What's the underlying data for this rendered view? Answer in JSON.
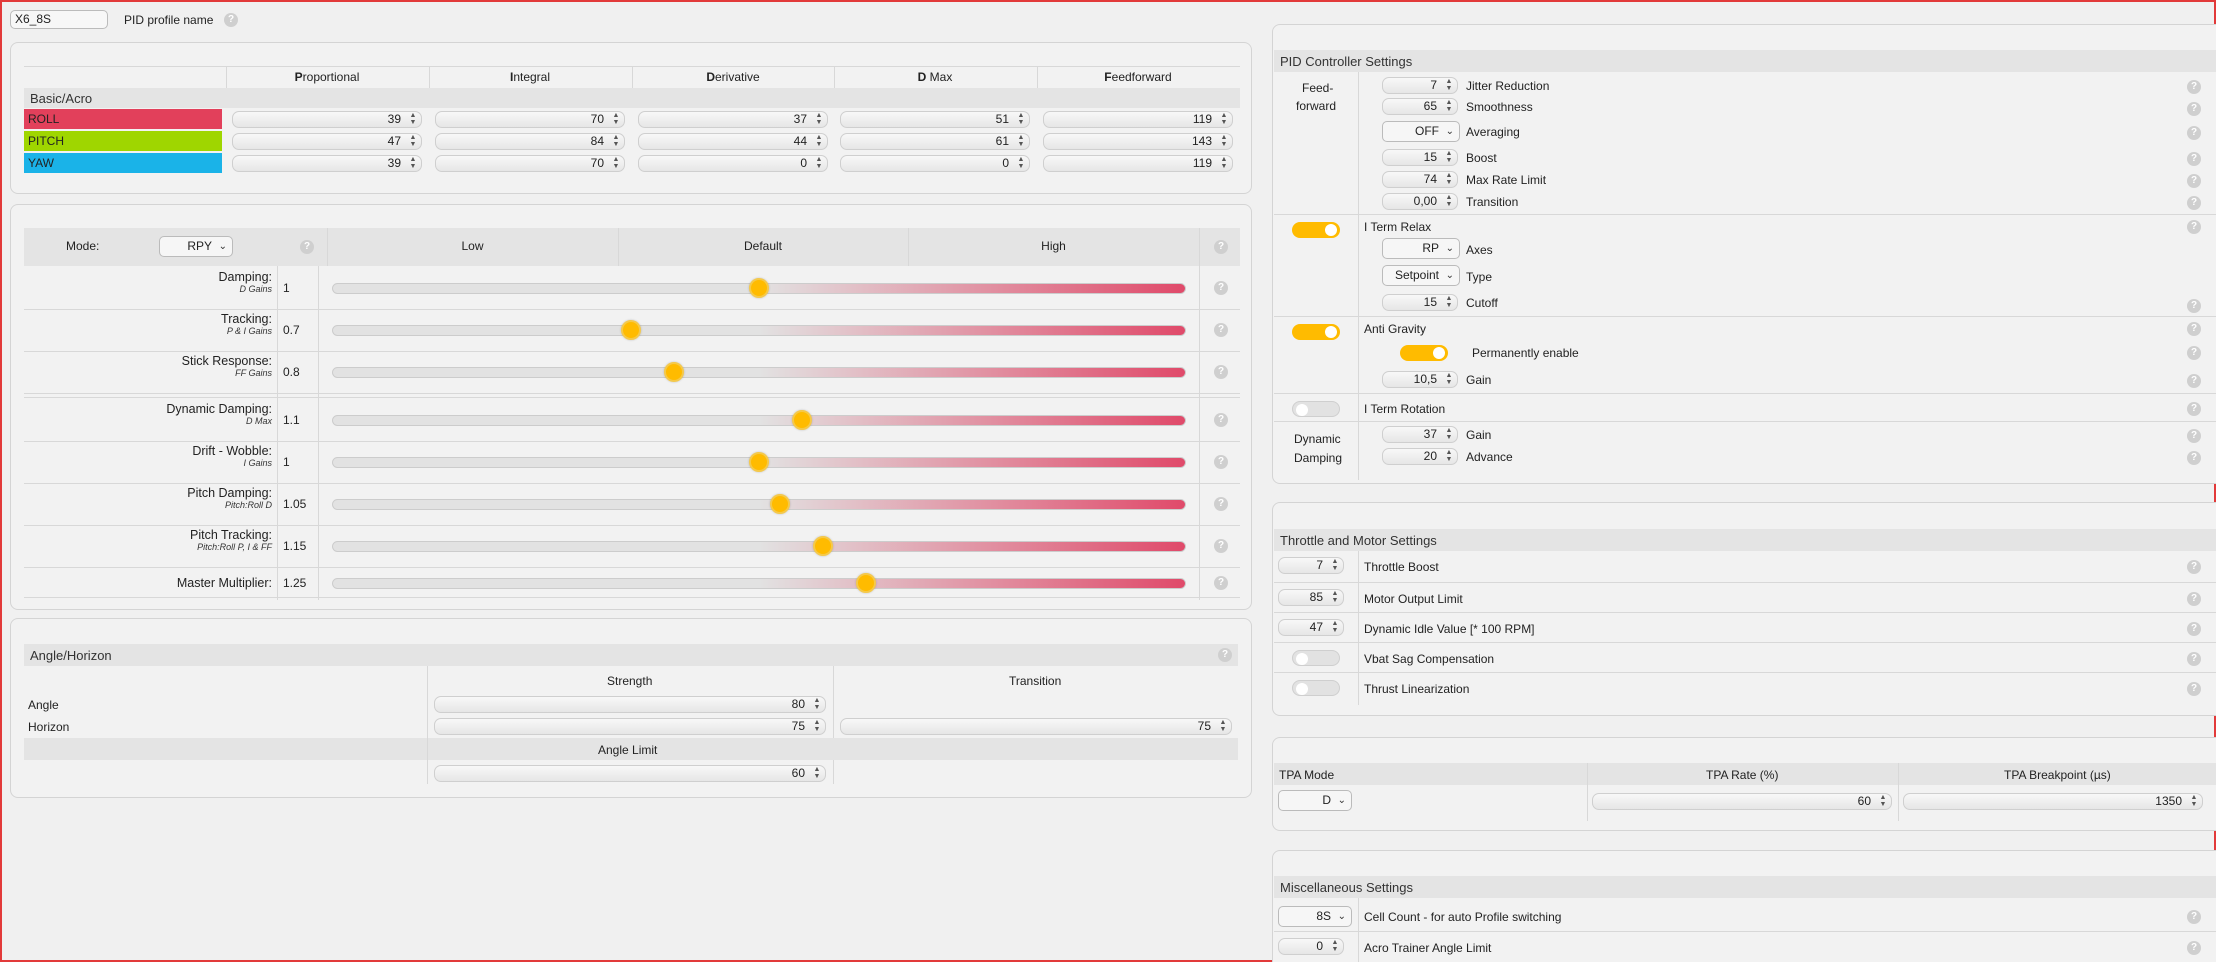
{
  "profile": {
    "name": "X6_8S",
    "label": "PID profile name"
  },
  "pid": {
    "columns": [
      {
        "first": "P",
        "rest": "roportional"
      },
      {
        "first": "I",
        "rest": "ntegral"
      },
      {
        "first": "D",
        "rest": "erivative"
      },
      {
        "first": "D",
        "rest": " Max"
      },
      {
        "first": "F",
        "rest": "eedforward"
      }
    ],
    "section": "Basic/Acro",
    "rows": [
      {
        "name": "ROLL",
        "color": "#e2405b",
        "values": [
          "39",
          "70",
          "37",
          "51",
          "119"
        ]
      },
      {
        "name": "PITCH",
        "color": "#9fd600",
        "values": [
          "47",
          "84",
          "44",
          "61",
          "143"
        ]
      },
      {
        "name": "YAW",
        "color": "#1ab3e8",
        "values": [
          "39",
          "70",
          "0",
          "0",
          "119"
        ]
      }
    ]
  },
  "sliders": {
    "mode_label": "Mode:",
    "mode_value": "RPY",
    "headers": [
      "Low",
      "Default",
      "High"
    ],
    "rows": [
      {
        "label": "Damping:",
        "sub": "D Gains",
        "value": "1",
        "pos": 0.5
      },
      {
        "label": "Tracking:",
        "sub": "P & I Gains",
        "value": "0.7",
        "pos": 0.35
      },
      {
        "label": "Stick Response:",
        "sub": "FF Gains",
        "value": "0.8",
        "pos": 0.4
      },
      {
        "label": "Dynamic Damping:",
        "sub": "D Max",
        "value": "1.1",
        "pos": 0.55
      },
      {
        "label": "Drift - Wobble:",
        "sub": "I Gains",
        "value": "1",
        "pos": 0.5
      },
      {
        "label": "Pitch Damping:",
        "sub": "Pitch:Roll D",
        "value": "1.05",
        "pos": 0.525
      },
      {
        "label": "Pitch Tracking:",
        "sub": "Pitch:Roll P, I & FF",
        "value": "1.15",
        "pos": 0.575
      },
      {
        "label": "Master Multiplier:",
        "sub": "",
        "value": "1.25",
        "pos": 0.625
      }
    ]
  },
  "angle": {
    "title": "Angle/Horizon",
    "strength": "Strength",
    "transition": "Transition",
    "angle_label": "Angle",
    "horizon_label": "Horizon",
    "angle_strength": "80",
    "horizon_strength": "75",
    "horizon_transition": "75",
    "limit_label": "Angle Limit",
    "limit_value": "60"
  },
  "pidctrl": {
    "title": "PID Controller Settings",
    "ff_label_1": "Feed-",
    "ff_label_2": "forward",
    "jitter": "7",
    "jitter_label": "Jitter Reduction",
    "smooth": "65",
    "smooth_label": "Smoothness",
    "averaging": "OFF",
    "averaging_label": "Averaging",
    "boost": "15",
    "boost_label": "Boost",
    "maxrate": "74",
    "maxrate_label": "Max Rate Limit",
    "transition": "0,00",
    "transition_label": "Transition",
    "itr_label": "I Term Relax",
    "axes": "RP",
    "axes_label": "Axes",
    "type": "Setpoint",
    "type_label": "Type",
    "cutoff": "15",
    "cutoff_label": "Cutoff",
    "ag_label": "Anti Gravity",
    "perm_label": "Permanently enable",
    "ag_gain": "10,5",
    "ag_gain_label": "Gain",
    "rot_label": "I Term Rotation",
    "dd_label_1": "Dynamic",
    "dd_label_2": "Damping",
    "dd_gain": "37",
    "dd_gain_label": "Gain",
    "dd_adv": "20",
    "dd_adv_label": "Advance"
  },
  "throttle": {
    "title": "Throttle and Motor Settings",
    "rows": [
      {
        "value": "7",
        "label": "Throttle Boost"
      },
      {
        "value": "85",
        "label": "Motor Output Limit"
      },
      {
        "value": "47",
        "label": "Dynamic Idle Value [* 100 RPM]"
      }
    ],
    "vbat_label": "Vbat Sag Compensation",
    "thrust_label": "Thrust Linearization"
  },
  "tpa": {
    "mode_label": "TPA Mode",
    "rate_label": "TPA Rate (%)",
    "bp_label": "TPA Breakpoint (µs)",
    "mode": "D",
    "rate": "60",
    "bp": "1350"
  },
  "misc": {
    "title": "Miscellaneous Settings",
    "cell": "8S",
    "cell_label": "Cell Count - for auto Profile switching",
    "acro": "0",
    "acro_label": "Acro Trainer Angle Limit"
  }
}
